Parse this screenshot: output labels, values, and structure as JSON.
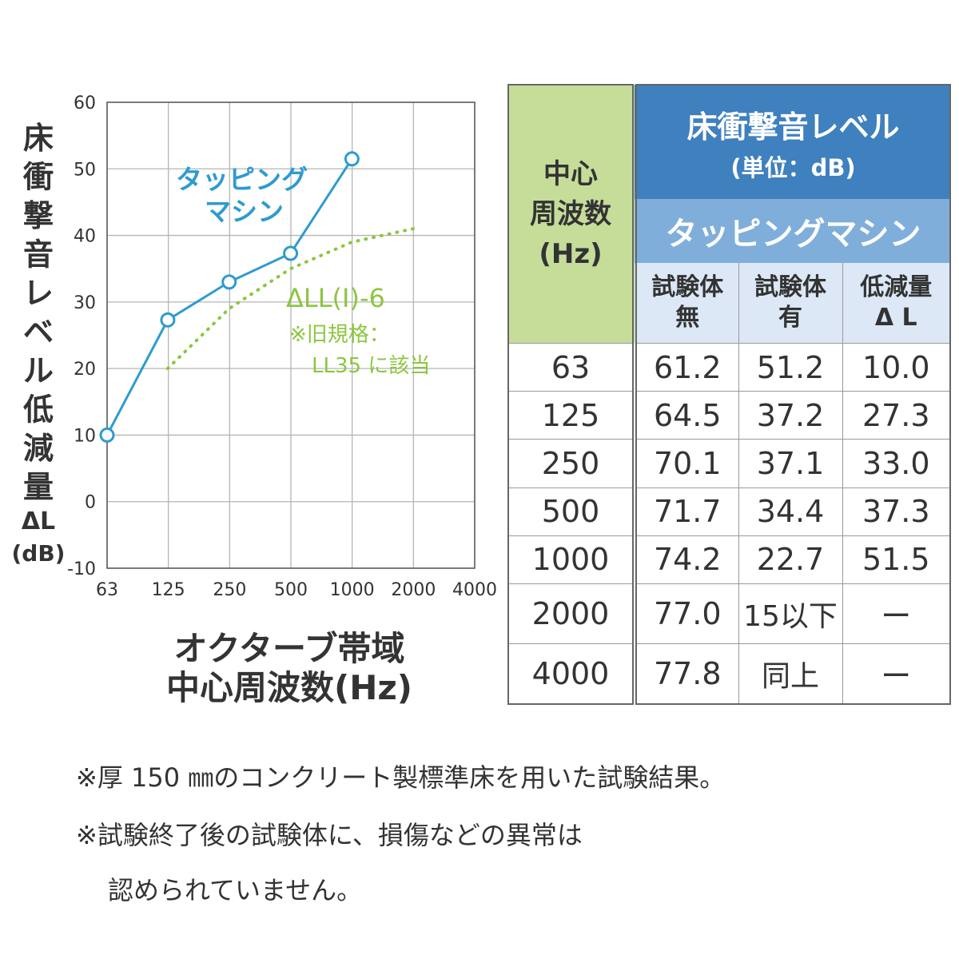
{
  "chart_data": {
    "type": "line",
    "x_scale": "log",
    "x_ticks": [
      "63",
      "125",
      "250",
      "500",
      "1000",
      "2000",
      "4000"
    ],
    "y_ticks": [
      "60",
      "50",
      "40",
      "30",
      "20",
      "10",
      "0",
      "-10"
    ],
    "ylim": [
      -10,
      60
    ],
    "grid": true,
    "ylabel_chars": [
      "床",
      "衝",
      "撃",
      "音",
      "レ",
      "ベ",
      "ル",
      "低",
      "減",
      "量"
    ],
    "ylabel_unit1": "ΔL",
    "ylabel_unit2": "(dB)",
    "xlabel_line1": "オクターブ帯域",
    "xlabel_line2": "中心周波数(Hz)",
    "series": [
      {
        "name": "タッピングマシン",
        "label_lines": [
          "タッピング",
          "マシン"
        ],
        "color": "#2e9bd0",
        "style": "solid-with-open-circles",
        "x": [
          63,
          125,
          250,
          500,
          1000
        ],
        "y": [
          10.0,
          27.3,
          33.0,
          37.3,
          51.5
        ]
      },
      {
        "name": "ΔLL(Ⅰ)-6",
        "color": "#8cc63f",
        "style": "dotted",
        "note_lines": [
          "※旧規格：",
          "LL35 に該当"
        ],
        "x": [
          125,
          250,
          500,
          1000,
          2000
        ],
        "y": [
          20,
          29,
          35,
          39,
          41
        ]
      }
    ]
  },
  "table": {
    "freq_header": [
      "中心",
      "周波数",
      "(Hz)"
    ],
    "title": "床衝撃音レベル",
    "unit": "(単位：dB)",
    "subtitle": "タッピングマシン",
    "columns": [
      [
        "試験体",
        "無"
      ],
      [
        "試験体",
        "有"
      ],
      [
        "低減量",
        "Δ L"
      ]
    ],
    "rows": [
      [
        "63",
        "61.2",
        "51.2",
        "10.0"
      ],
      [
        "125",
        "64.5",
        "37.2",
        "27.3"
      ],
      [
        "250",
        "70.1",
        "37.1",
        "33.0"
      ],
      [
        "500",
        "71.7",
        "34.4",
        "37.3"
      ],
      [
        "1000",
        "74.2",
        "22.7",
        "51.5"
      ],
      [
        "2000",
        "77.0",
        "15以下",
        "ー"
      ],
      [
        "4000",
        "77.8",
        "同上",
        "ー"
      ]
    ]
  },
  "notes": [
    "※厚 150 ㎜のコンクリート製標準床を用いた試験結果。",
    "※試験終了後の試験体に、損傷などの異常は",
    "認められていません。"
  ]
}
